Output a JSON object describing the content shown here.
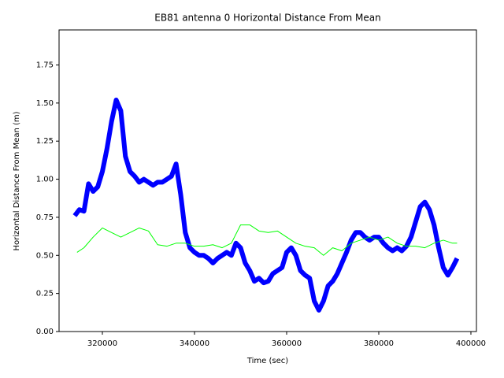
{
  "chart_data": {
    "type": "line",
    "title": "EB81 antenna 0 Horizontal Distance From Mean",
    "x_label": "Time (sec)",
    "y_label": "Horizontal Distance From Mean (m)",
    "xlim": [
      310600,
      401200
    ],
    "ylim": [
      0,
      1.98
    ],
    "xticks": [
      320000,
      340000,
      360000,
      380000,
      400000
    ],
    "yticks": [
      {
        "value": 0,
        "label": "0.00"
      },
      {
        "value": 0.25,
        "label": "0.25"
      },
      {
        "value": 0.5,
        "label": "0.50"
      },
      {
        "value": 0.75,
        "label": "0.75"
      },
      {
        "value": 1,
        "label": "1.00"
      },
      {
        "value": 1.25,
        "label": "1.25"
      },
      {
        "value": 1.5,
        "label": "1.50"
      },
      {
        "value": 1.75,
        "label": "1.75"
      }
    ],
    "series": [
      {
        "color": "#0000ff",
        "width": 6,
        "x": [
          314000,
          315000,
          316000,
          317000,
          318000,
          319000,
          320000,
          321000,
          322000,
          323000,
          324000,
          325000,
          326000,
          327000,
          328000,
          329000,
          330000,
          331000,
          332000,
          333000,
          334000,
          335000,
          336000,
          337000,
          338000,
          339000,
          340000,
          341000,
          342000,
          343000,
          344000,
          345000,
          346000,
          347000,
          348000,
          349000,
          350000,
          351000,
          352000,
          353000,
          354000,
          355000,
          356000,
          357000,
          358000,
          359000,
          360000,
          361000,
          362000,
          363000,
          364000,
          365000,
          366000,
          367000,
          368000,
          369000,
          370000,
          371000,
          372000,
          373000,
          374000,
          375000,
          376000,
          377000,
          378000,
          379000,
          380000,
          381000,
          382000,
          383000,
          384000,
          385000,
          386000,
          387000,
          388000,
          389000,
          390000,
          391000,
          392000,
          393000,
          394000,
          395000,
          396000,
          397000
        ],
        "values": [
          0.76,
          0.8,
          0.79,
          0.97,
          0.92,
          0.95,
          1.05,
          1.2,
          1.38,
          1.52,
          1.45,
          1.15,
          1.05,
          1.02,
          0.98,
          1.0,
          0.98,
          0.96,
          0.98,
          0.98,
          1.0,
          1.02,
          1.1,
          0.9,
          0.65,
          0.55,
          0.52,
          0.5,
          0.5,
          0.48,
          0.45,
          0.48,
          0.5,
          0.52,
          0.5,
          0.58,
          0.55,
          0.45,
          0.4,
          0.33,
          0.35,
          0.32,
          0.33,
          0.38,
          0.4,
          0.42,
          0.52,
          0.55,
          0.5,
          0.4,
          0.37,
          0.35,
          0.2,
          0.14,
          0.2,
          0.3,
          0.33,
          0.38,
          0.45,
          0.52,
          0.6,
          0.65,
          0.65,
          0.62,
          0.6,
          0.62,
          0.62,
          0.58,
          0.55,
          0.53,
          0.55,
          0.53,
          0.56,
          0.62,
          0.72,
          0.82,
          0.85,
          0.8,
          0.7,
          0.55,
          0.42,
          0.37,
          0.42,
          0.48
        ]
      },
      {
        "color": "#00ff00",
        "width": 1,
        "x": [
          314500,
          316000,
          318000,
          320000,
          322000,
          324000,
          326000,
          328000,
          330000,
          332000,
          334000,
          336000,
          338000,
          340000,
          342000,
          344000,
          346000,
          348000,
          350000,
          352000,
          354000,
          356000,
          358000,
          360000,
          362000,
          364000,
          366000,
          368000,
          370000,
          372000,
          374000,
          376000,
          378000,
          380000,
          382000,
          384000,
          386000,
          388000,
          390000,
          392000,
          394000,
          396000,
          397000
        ],
        "values": [
          0.52,
          0.55,
          0.62,
          0.68,
          0.65,
          0.62,
          0.65,
          0.68,
          0.66,
          0.57,
          0.56,
          0.58,
          0.58,
          0.56,
          0.56,
          0.57,
          0.55,
          0.58,
          0.7,
          0.7,
          0.66,
          0.65,
          0.66,
          0.62,
          0.58,
          0.56,
          0.55,
          0.5,
          0.55,
          0.53,
          0.58,
          0.6,
          0.62,
          0.6,
          0.62,
          0.58,
          0.56,
          0.56,
          0.55,
          0.58,
          0.6,
          0.58,
          0.58
        ]
      }
    ]
  }
}
